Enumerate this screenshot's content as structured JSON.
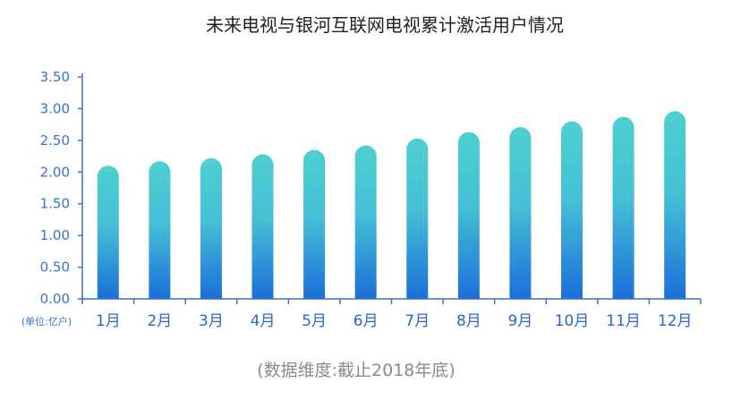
{
  "chart_data": {
    "type": "bar",
    "title": "未来电视与银河互联网电视累计激活用户情况",
    "unit_label": "(单位:亿户)",
    "footnote": "(数据维度:截止2018年底)",
    "categories": [
      "1月",
      "2月",
      "3月",
      "4月",
      "5月",
      "6月",
      "7月",
      "8月",
      "9月",
      "10月",
      "11月",
      "12月"
    ],
    "values": [
      2.1,
      2.17,
      2.22,
      2.28,
      2.35,
      2.42,
      2.53,
      2.63,
      2.71,
      2.8,
      2.87,
      2.96
    ],
    "y_ticks": [
      "0.00",
      "0.50",
      "1.00",
      "1.50",
      "2.00",
      "2.50",
      "3.00",
      "3.50"
    ],
    "ylim": [
      0,
      3.5
    ],
    "grid": false,
    "colors": {
      "bar_top": "#4ecfcf",
      "bar_bottom": "#1b6fd8",
      "axis": "#3a6fd0"
    }
  }
}
